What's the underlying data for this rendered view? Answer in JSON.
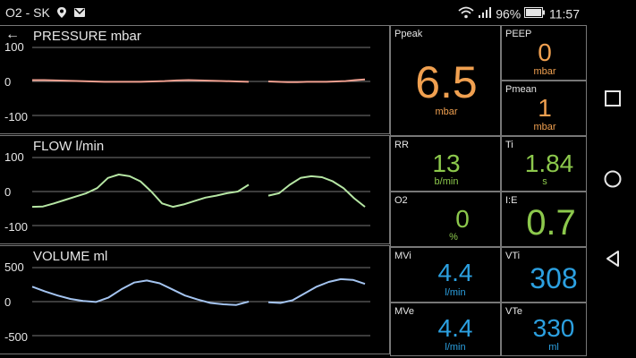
{
  "status_bar": {
    "carrier": "O2 - SK",
    "battery": "96%",
    "time": "11:57",
    "icons": [
      "location-icon",
      "mail-icon",
      "wifi-icon",
      "signal-icon",
      "battery-icon"
    ]
  },
  "colors": {
    "pressure": "#f0a090",
    "flow": "#b6e6a4",
    "volume": "#a4c4f0",
    "orange": "#f0a050",
    "green": "#8cc84c",
    "blue": "#2ca0e0",
    "grid": "#777777"
  },
  "charts": [
    {
      "title": "PRESSURE mbar",
      "ticks": [
        "100",
        "0",
        "-100"
      ]
    },
    {
      "title": "FLOW l/min",
      "ticks": [
        "100",
        "0",
        "-100"
      ]
    },
    {
      "title": "VOLUME ml",
      "ticks": [
        "500",
        "0",
        "-500"
      ]
    }
  ],
  "chart_data": [
    {
      "type": "line",
      "title": "PRESSURE mbar",
      "ylim": [
        -100,
        100
      ],
      "series": [
        {
          "values": [
            4,
            4,
            3,
            2,
            1,
            0,
            -1,
            -1,
            -1,
            -1,
            0,
            1,
            3,
            4,
            3,
            2,
            1,
            0,
            -1
          ],
          "gap_after_index": 18
        },
        {
          "values": [
            0,
            -1,
            -2,
            -2,
            -1,
            -1,
            -1,
            0,
            1,
            4,
            6
          ]
        }
      ]
    },
    {
      "type": "line",
      "title": "FLOW l/min",
      "ylim": [
        -100,
        100
      ],
      "series": [
        {
          "values": [
            -45,
            -44,
            -35,
            -25,
            -15,
            -5,
            10,
            40,
            50,
            45,
            30,
            0,
            -35,
            -45,
            -38,
            -28,
            -18,
            -12,
            -5,
            0,
            20
          ]
        },
        {
          "values": [
            -12,
            -5,
            20,
            40,
            45,
            42,
            30,
            10,
            -20,
            -45
          ]
        }
      ]
    },
    {
      "type": "line",
      "title": "VOLUME ml",
      "ylim": [
        -500,
        500
      ],
      "series": [
        {
          "values": [
            220,
            150,
            90,
            40,
            10,
            -5,
            60,
            180,
            280,
            310,
            270,
            180,
            90,
            30,
            -20,
            -40,
            -50,
            0
          ]
        },
        {
          "values": [
            -10,
            -20,
            20,
            120,
            220,
            290,
            330,
            320,
            260
          ]
        }
      ]
    }
  ],
  "metrics": {
    "ppeak": {
      "label": "Ppeak",
      "value": "6.5",
      "unit": "mbar"
    },
    "peep": {
      "label": "PEEP",
      "value": "0",
      "unit": "mbar"
    },
    "pmean": {
      "label": "Pmean",
      "value": "1",
      "unit": "mbar"
    },
    "rr": {
      "label": "RR",
      "value": "13",
      "unit": "b/min"
    },
    "ti": {
      "label": "Ti",
      "value": "1.84",
      "unit": "s"
    },
    "o2": {
      "label": "O2",
      "value": "0",
      "unit": "%"
    },
    "ie": {
      "label": "I:E",
      "value": "0.7"
    },
    "mvi": {
      "label": "MVi",
      "value": "4.4",
      "unit": "l/min"
    },
    "vti": {
      "label": "VTi",
      "value": "308",
      "unit": "ml"
    },
    "mve": {
      "label": "MVe",
      "value": "4.4",
      "unit": "l/min"
    },
    "vte": {
      "label": "VTe",
      "value": "330",
      "unit": "ml"
    }
  },
  "nav": [
    "recents-button",
    "home-button",
    "back-button"
  ]
}
